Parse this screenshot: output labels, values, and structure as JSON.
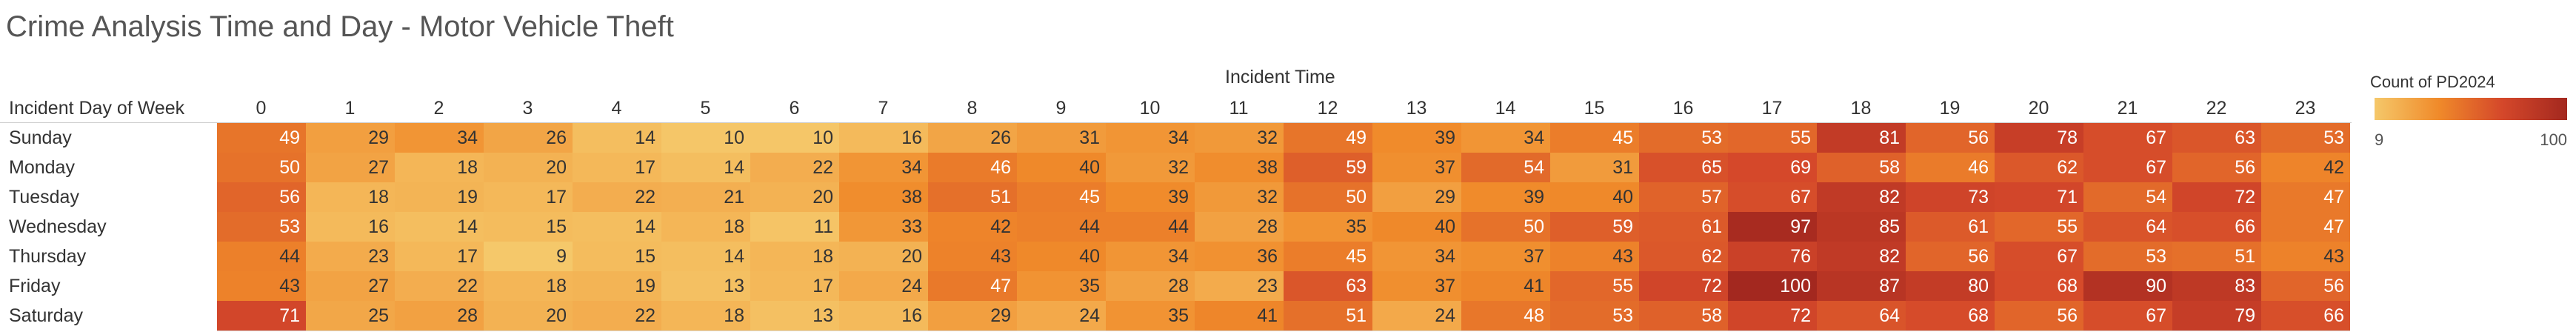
{
  "title": "Crime Analysis Time and Day - Motor Vehicle Theft",
  "legend": {
    "title": "Count of PD2024",
    "min_label": "9",
    "max_label": "100",
    "colors": [
      "#f5c86a",
      "#f08a2a",
      "#d4472a",
      "#a3281f"
    ]
  },
  "chart_data": {
    "type": "heatmap",
    "title": "Crime Analysis Time and Day - Motor Vehicle Theft",
    "xlabel": "Incident Time",
    "ylabel": "Incident Day of Week",
    "x": [
      "0",
      "1",
      "2",
      "3",
      "4",
      "5",
      "6",
      "7",
      "8",
      "9",
      "10",
      "11",
      "12",
      "13",
      "14",
      "15",
      "16",
      "17",
      "18",
      "19",
      "20",
      "21",
      "22",
      "23"
    ],
    "y": [
      "Sunday",
      "Monday",
      "Tuesday",
      "Wednesday",
      "Thursday",
      "Friday",
      "Saturday"
    ],
    "values": [
      [
        49,
        29,
        34,
        26,
        14,
        10,
        10,
        16,
        26,
        31,
        34,
        32,
        49,
        39,
        34,
        45,
        53,
        55,
        81,
        56,
        78,
        67,
        63,
        53
      ],
      [
        50,
        27,
        18,
        20,
        17,
        14,
        22,
        34,
        46,
        40,
        32,
        38,
        59,
        37,
        54,
        31,
        65,
        69,
        58,
        46,
        62,
        67,
        56,
        42
      ],
      [
        56,
        18,
        19,
        17,
        22,
        21,
        20,
        38,
        51,
        45,
        39,
        32,
        50,
        29,
        39,
        40,
        57,
        67,
        82,
        73,
        71,
        54,
        72,
        47
      ],
      [
        53,
        16,
        14,
        15,
        14,
        18,
        11,
        33,
        42,
        44,
        44,
        28,
        35,
        40,
        50,
        59,
        61,
        97,
        85,
        61,
        55,
        64,
        66,
        47
      ],
      [
        44,
        23,
        17,
        9,
        15,
        14,
        18,
        20,
        43,
        40,
        34,
        36,
        45,
        34,
        37,
        43,
        62,
        76,
        82,
        56,
        67,
        53,
        51,
        43
      ],
      [
        43,
        27,
        22,
        18,
        19,
        13,
        17,
        24,
        47,
        35,
        28,
        23,
        63,
        37,
        41,
        55,
        72,
        100,
        87,
        80,
        68,
        90,
        83,
        56
      ],
      [
        71,
        25,
        28,
        20,
        22,
        18,
        13,
        16,
        29,
        24,
        35,
        41,
        51,
        24,
        48,
        53,
        58,
        72,
        64,
        68,
        56,
        67,
        79,
        66
      ]
    ],
    "color_range": [
      9,
      100
    ],
    "legend": "top-right"
  }
}
